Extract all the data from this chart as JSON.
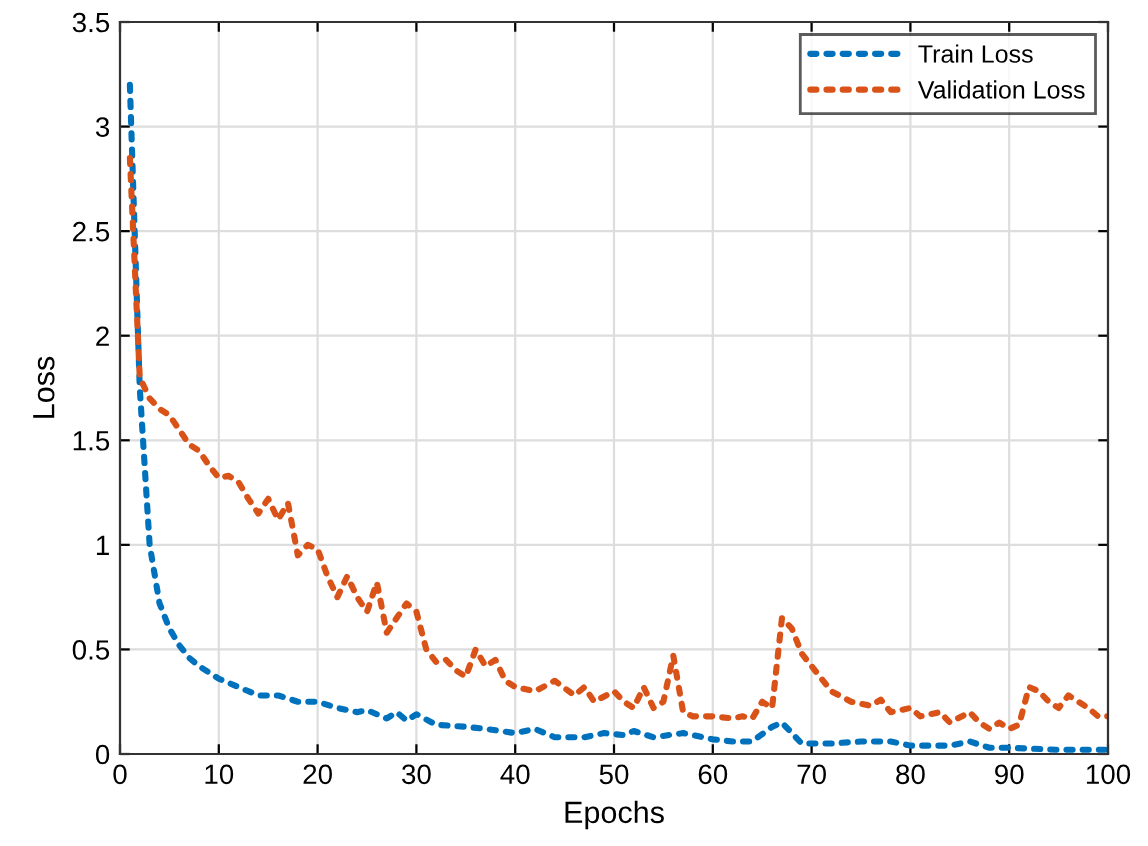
{
  "chart_data": {
    "type": "line",
    "xlabel": "Epochs",
    "ylabel": "Loss",
    "xlim": [
      0,
      100
    ],
    "xticks": [
      0,
      10,
      20,
      30,
      40,
      50,
      60,
      70,
      80,
      90,
      100
    ],
    "ylim": [
      0,
      3.5
    ],
    "yticks": [
      0,
      0.5,
      1,
      1.5,
      2,
      2.5,
      3,
      3.5
    ],
    "grid": true,
    "legend": "top right",
    "line_style": "dotted",
    "marker": "none",
    "series": [
      {
        "name": "Train Loss",
        "color": "#0072bd",
        "x": [
          1,
          2,
          3,
          4,
          5,
          6,
          7,
          8,
          9,
          10,
          12,
          14,
          16,
          18,
          20,
          22,
          24,
          25,
          27,
          28,
          29,
          30,
          32,
          35,
          37,
          40,
          42,
          44,
          47,
          49,
          51,
          52,
          54,
          57,
          60,
          62,
          64,
          66,
          67,
          68,
          69,
          72,
          75,
          78,
          80,
          84,
          86,
          88,
          90,
          95,
          100
        ],
        "values": [
          3.2,
          1.75,
          1.0,
          0.72,
          0.6,
          0.52,
          0.46,
          0.42,
          0.39,
          0.36,
          0.32,
          0.28,
          0.28,
          0.25,
          0.25,
          0.22,
          0.2,
          0.21,
          0.17,
          0.2,
          0.16,
          0.19,
          0.14,
          0.13,
          0.12,
          0.1,
          0.12,
          0.08,
          0.08,
          0.1,
          0.09,
          0.11,
          0.08,
          0.1,
          0.07,
          0.06,
          0.06,
          0.13,
          0.15,
          0.1,
          0.05,
          0.05,
          0.06,
          0.06,
          0.04,
          0.04,
          0.06,
          0.03,
          0.03,
          0.02,
          0.02
        ]
      },
      {
        "name": "Validation Loss",
        "color": "#d95319",
        "x": [
          1,
          2,
          3,
          4,
          5,
          6,
          7,
          8,
          9,
          10,
          11,
          12,
          13,
          14,
          15,
          16,
          17,
          18,
          19,
          20,
          21,
          22,
          23,
          24,
          25,
          26,
          27,
          28,
          29,
          30,
          31,
          32,
          33,
          34,
          35,
          36,
          37,
          38,
          39,
          40,
          42,
          44,
          46,
          47,
          48,
          50,
          51,
          52,
          53,
          54,
          55,
          56,
          57,
          58,
          60,
          62,
          63,
          64,
          65,
          66,
          67,
          68,
          69,
          70,
          72,
          74,
          76,
          77,
          78,
          80,
          81,
          83,
          84,
          86,
          87,
          88,
          89,
          90,
          91,
          92,
          93,
          94,
          95,
          96,
          97,
          98,
          99,
          100
        ],
        "values": [
          2.85,
          1.8,
          1.7,
          1.65,
          1.62,
          1.55,
          1.48,
          1.45,
          1.38,
          1.32,
          1.33,
          1.3,
          1.22,
          1.15,
          1.22,
          1.12,
          1.2,
          0.95,
          1.0,
          0.98,
          0.85,
          0.75,
          0.85,
          0.75,
          0.68,
          0.82,
          0.58,
          0.65,
          0.72,
          0.68,
          0.5,
          0.44,
          0.45,
          0.4,
          0.37,
          0.5,
          0.42,
          0.45,
          0.35,
          0.32,
          0.3,
          0.35,
          0.28,
          0.32,
          0.25,
          0.3,
          0.25,
          0.22,
          0.32,
          0.22,
          0.25,
          0.47,
          0.2,
          0.18,
          0.18,
          0.17,
          0.18,
          0.17,
          0.25,
          0.22,
          0.65,
          0.6,
          0.48,
          0.42,
          0.3,
          0.25,
          0.23,
          0.26,
          0.2,
          0.22,
          0.18,
          0.2,
          0.15,
          0.2,
          0.15,
          0.12,
          0.15,
          0.12,
          0.14,
          0.32,
          0.3,
          0.25,
          0.22,
          0.28,
          0.25,
          0.22,
          0.18,
          0.18
        ]
      }
    ]
  }
}
